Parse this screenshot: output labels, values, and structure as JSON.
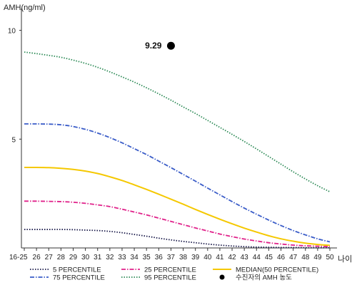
{
  "chart_data": {
    "type": "line",
    "ylabel": "AMH(ng/ml)",
    "xlabel": "나이",
    "categories": [
      "16-25",
      "26",
      "27",
      "28",
      "29",
      "30",
      "31",
      "32",
      "33",
      "34",
      "35",
      "36",
      "37",
      "38",
      "39",
      "40",
      "41",
      "42",
      "43",
      "44",
      "45",
      "46",
      "47",
      "48",
      "49",
      "50"
    ],
    "yticks": [
      5,
      10
    ],
    "ylim": [
      0,
      11
    ],
    "series": [
      {
        "name": "5 PERCENTILE",
        "color": "#1a1a4a",
        "style": "dotted",
        "values": [
          0.85,
          0.85,
          0.85,
          0.85,
          0.84,
          0.82,
          0.8,
          0.76,
          0.7,
          0.62,
          0.54,
          0.45,
          0.37,
          0.3,
          0.24,
          0.18,
          0.13,
          0.09,
          0.06,
          0.04,
          0.03,
          0.02,
          0.02,
          0.01,
          0.01,
          0.01
        ]
      },
      {
        "name": "25 PERCENTILE",
        "color": "#e0218a",
        "style": "dashdot",
        "values": [
          2.15,
          2.15,
          2.14,
          2.13,
          2.1,
          2.05,
          1.98,
          1.9,
          1.78,
          1.65,
          1.52,
          1.37,
          1.22,
          1.07,
          0.92,
          0.78,
          0.64,
          0.52,
          0.41,
          0.32,
          0.24,
          0.18,
          0.13,
          0.1,
          0.08,
          0.06
        ]
      },
      {
        "name": "MEDIAN(50 PERCENTILE)",
        "color": "#f5c800",
        "style": "solid",
        "values": [
          3.7,
          3.7,
          3.69,
          3.66,
          3.61,
          3.53,
          3.42,
          3.27,
          3.1,
          2.9,
          2.69,
          2.47,
          2.24,
          2.01,
          1.77,
          1.54,
          1.32,
          1.11,
          0.91,
          0.73,
          0.56,
          0.42,
          0.31,
          0.22,
          0.16,
          0.12
        ]
      },
      {
        "name": "75 PERCENTILE",
        "color": "#3a5cc8",
        "style": "dashdot",
        "values": [
          5.7,
          5.7,
          5.69,
          5.66,
          5.58,
          5.45,
          5.28,
          5.07,
          4.83,
          4.56,
          4.29,
          3.99,
          3.69,
          3.38,
          3.07,
          2.75,
          2.44,
          2.13,
          1.83,
          1.55,
          1.28,
          1.03,
          0.8,
          0.6,
          0.42,
          0.28
        ]
      },
      {
        "name": "95 PERCENTILE",
        "color": "#2e8b57",
        "style": "dotted",
        "values": [
          9.0,
          8.93,
          8.85,
          8.76,
          8.63,
          8.48,
          8.3,
          8.09,
          7.86,
          7.62,
          7.36,
          7.08,
          6.79,
          6.48,
          6.18,
          5.86,
          5.54,
          5.22,
          4.89,
          4.55,
          4.2,
          3.85,
          3.5,
          3.17,
          2.86,
          2.58
        ]
      }
    ],
    "highlight": {
      "label": "9.29",
      "x": "37",
      "y": 9.29,
      "legend": "수진자의 AMH 농도",
      "color": "#000000"
    },
    "legend_placement": "bottom",
    "grid": false
  }
}
